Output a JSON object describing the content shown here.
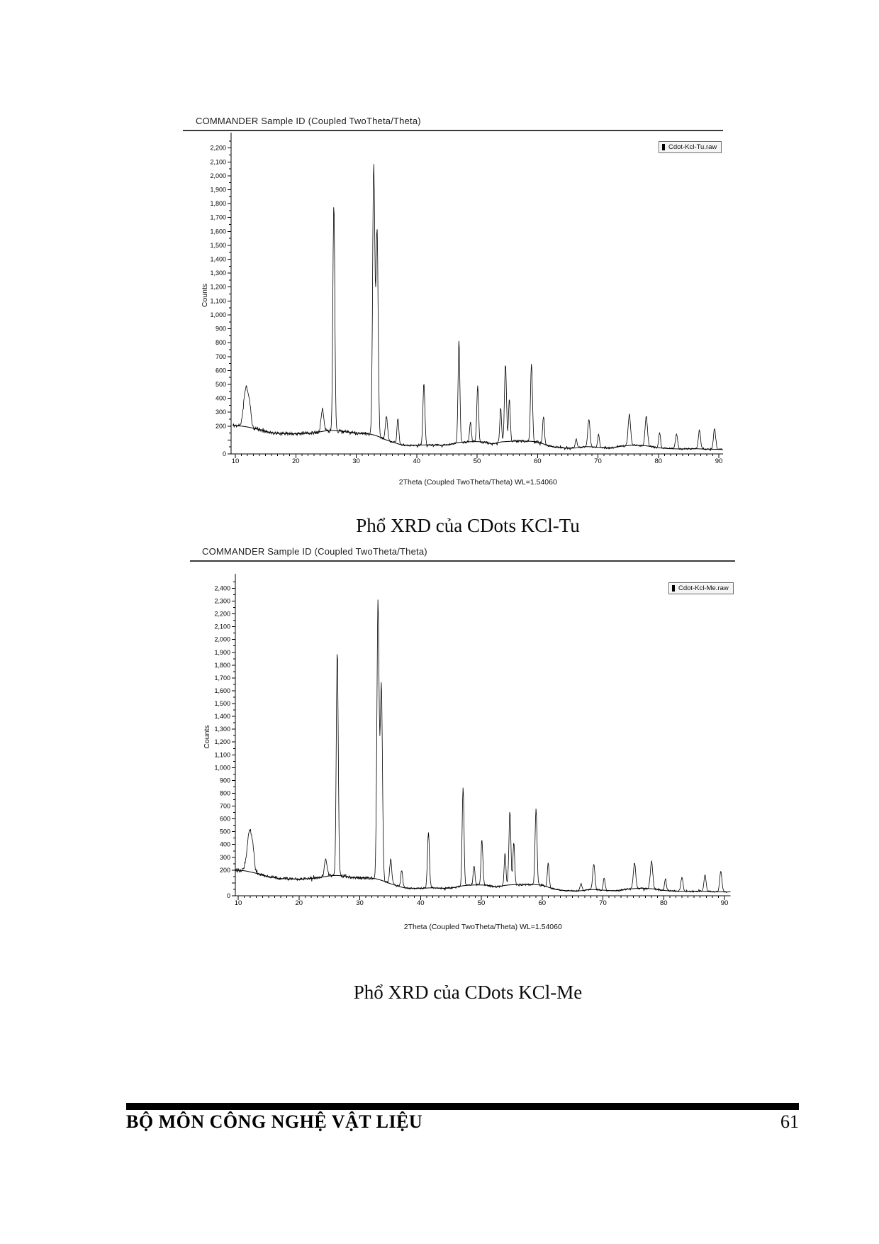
{
  "figures": [
    {
      "caption": "Phổ XRD của CDots KCl-Tu"
    },
    {
      "caption": "Phổ XRD của CDots KCl-Me"
    }
  ],
  "page": {
    "footer": {
      "department": "BỘ MÔN CÔNG NGHỆ VẬT LIỆU",
      "page_number": "61"
    }
  },
  "colors": {
    "ink": "#000000",
    "paper": "#ffffff",
    "legend_bg": "#f4f4f4"
  },
  "chart_data": [
    {
      "type": "line",
      "title": "COMMANDER Sample ID (Coupled TwoTheta/Theta)",
      "legend": "Cdot-Kcl-Tu.raw",
      "xlabel": "2Theta (Coupled TwoTheta/Theta) WL=1.54060",
      "ylabel": "Counts",
      "xlim": [
        9.55,
        91
      ],
      "x_tick_labels": [
        10,
        20,
        30,
        40,
        50,
        60,
        70,
        80,
        90
      ],
      "x_minor_tick_step": 1,
      "ylim": [
        0,
        2280
      ],
      "y_tick_minor_step": 50,
      "y_label_step": 100,
      "y_label_top": 2200,
      "y_labels_skipped": [
        100
      ],
      "grid": false,
      "legend_position": "top-right",
      "noise_seed": 11,
      "peaks_format": [
        "two_theta_deg",
        "counts_above_background",
        "sigma_deg"
      ],
      "peaks": [
        [
          11.8,
          295,
          0.4
        ],
        [
          12.4,
          90,
          0.2
        ],
        [
          24.4,
          165,
          0.22
        ],
        [
          26.3,
          1635,
          0.16
        ],
        [
          32.9,
          1950,
          0.18
        ],
        [
          33.45,
          1480,
          0.18
        ],
        [
          35.0,
          175,
          0.18
        ],
        [
          36.9,
          185,
          0.15
        ],
        [
          41.2,
          450,
          0.16
        ],
        [
          47.0,
          730,
          0.15
        ],
        [
          48.9,
          140,
          0.14
        ],
        [
          50.1,
          400,
          0.15
        ],
        [
          53.9,
          240,
          0.14
        ],
        [
          54.7,
          560,
          0.16
        ],
        [
          55.35,
          310,
          0.14
        ],
        [
          59.0,
          565,
          0.16
        ],
        [
          61.0,
          200,
          0.15
        ],
        [
          66.4,
          60,
          0.15
        ],
        [
          68.5,
          200,
          0.18
        ],
        [
          70.1,
          90,
          0.15
        ],
        [
          75.2,
          225,
          0.2
        ],
        [
          78.0,
          210,
          0.2
        ],
        [
          80.2,
          105,
          0.15
        ],
        [
          83.0,
          105,
          0.18
        ],
        [
          86.8,
          135,
          0.18
        ],
        [
          89.3,
          150,
          0.18
        ]
      ],
      "background_curve": [
        [
          9.6,
          205
        ],
        [
          11,
          200
        ],
        [
          13,
          185
        ],
        [
          15,
          162
        ],
        [
          17,
          148
        ],
        [
          20,
          145
        ],
        [
          23,
          152
        ],
        [
          25,
          166
        ],
        [
          26.5,
          168
        ],
        [
          28,
          160
        ],
        [
          30,
          150
        ],
        [
          32,
          145
        ],
        [
          33.5,
          128
        ],
        [
          35,
          100
        ],
        [
          36.5,
          78
        ],
        [
          38,
          62
        ],
        [
          40,
          62
        ],
        [
          42,
          66
        ],
        [
          44,
          62
        ],
        [
          45.5,
          68
        ],
        [
          47,
          82
        ],
        [
          49,
          88
        ],
        [
          51,
          86
        ],
        [
          52.5,
          74
        ],
        [
          54,
          86
        ],
        [
          56,
          92
        ],
        [
          58,
          92
        ],
        [
          60,
          86
        ],
        [
          62,
          56
        ],
        [
          64,
          44
        ],
        [
          66,
          42
        ],
        [
          68,
          52
        ],
        [
          70,
          48
        ],
        [
          72,
          42
        ],
        [
          74,
          56
        ],
        [
          76,
          62
        ],
        [
          78,
          58
        ],
        [
          80,
          44
        ],
        [
          82,
          38
        ],
        [
          84,
          36
        ],
        [
          86,
          38
        ],
        [
          88,
          34
        ],
        [
          90.5,
          32
        ]
      ]
    },
    {
      "type": "line",
      "title": "COMMANDER Sample ID (Coupled TwoTheta/Theta)",
      "legend": "Cdot-Kcl-Me.raw",
      "xlabel": "2Theta (Coupled TwoTheta/Theta) WL=1.54060",
      "ylabel": "Counts",
      "xlim": [
        9.55,
        91
      ],
      "x_tick_labels": [
        10,
        20,
        30,
        40,
        50,
        60,
        70,
        80,
        90
      ],
      "x_minor_tick_step": 1,
      "ylim": [
        0,
        2480
      ],
      "y_tick_minor_step": 50,
      "y_label_step": 100,
      "y_label_top": 2400,
      "y_labels_skipped": [
        100
      ],
      "grid": false,
      "legend_position": "top-right",
      "noise_seed": 23,
      "peaks_format": [
        "two_theta_deg",
        "counts_above_background",
        "sigma_deg"
      ],
      "peaks": [
        [
          11.9,
          335,
          0.4
        ],
        [
          12.5,
          90,
          0.2
        ],
        [
          24.4,
          140,
          0.22
        ],
        [
          26.3,
          1760,
          0.16
        ],
        [
          33.0,
          2165,
          0.18
        ],
        [
          33.55,
          1530,
          0.18
        ],
        [
          35.1,
          190,
          0.18
        ],
        [
          36.9,
          130,
          0.15
        ],
        [
          41.3,
          430,
          0.16
        ],
        [
          47.0,
          770,
          0.15
        ],
        [
          48.8,
          155,
          0.14
        ],
        [
          50.1,
          360,
          0.15
        ],
        [
          53.9,
          250,
          0.14
        ],
        [
          54.7,
          575,
          0.16
        ],
        [
          55.35,
          330,
          0.14
        ],
        [
          59.0,
          595,
          0.16
        ],
        [
          61.0,
          185,
          0.15
        ],
        [
          66.4,
          55,
          0.15
        ],
        [
          68.5,
          205,
          0.18
        ],
        [
          70.2,
          95,
          0.15
        ],
        [
          75.2,
          200,
          0.2
        ],
        [
          78.0,
          215,
          0.2
        ],
        [
          80.3,
          90,
          0.15
        ],
        [
          83.0,
          105,
          0.18
        ],
        [
          86.8,
          125,
          0.18
        ],
        [
          89.4,
          160,
          0.18
        ]
      ],
      "background_curve": [
        [
          9.6,
          200
        ],
        [
          11,
          195
        ],
        [
          13,
          175
        ],
        [
          15,
          150
        ],
        [
          17,
          135
        ],
        [
          20,
          130
        ],
        [
          23,
          140
        ],
        [
          25,
          155
        ],
        [
          26.5,
          158
        ],
        [
          28,
          148
        ],
        [
          30,
          140
        ],
        [
          32,
          138
        ],
        [
          33.5,
          122
        ],
        [
          35,
          95
        ],
        [
          36.5,
          72
        ],
        [
          38,
          58
        ],
        [
          40,
          58
        ],
        [
          42,
          62
        ],
        [
          44,
          58
        ],
        [
          45.5,
          64
        ],
        [
          47,
          78
        ],
        [
          49,
          84
        ],
        [
          51,
          82
        ],
        [
          52.5,
          70
        ],
        [
          54,
          82
        ],
        [
          56,
          88
        ],
        [
          58,
          88
        ],
        [
          60,
          82
        ],
        [
          62,
          52
        ],
        [
          64,
          40
        ],
        [
          66,
          38
        ],
        [
          68,
          48
        ],
        [
          70,
          44
        ],
        [
          72,
          40
        ],
        [
          74,
          52
        ],
        [
          76,
          58
        ],
        [
          78,
          55
        ],
        [
          80,
          42
        ],
        [
          82,
          36
        ],
        [
          84,
          34
        ],
        [
          86,
          36
        ],
        [
          88,
          32
        ],
        [
          90.5,
          30
        ]
      ]
    }
  ]
}
